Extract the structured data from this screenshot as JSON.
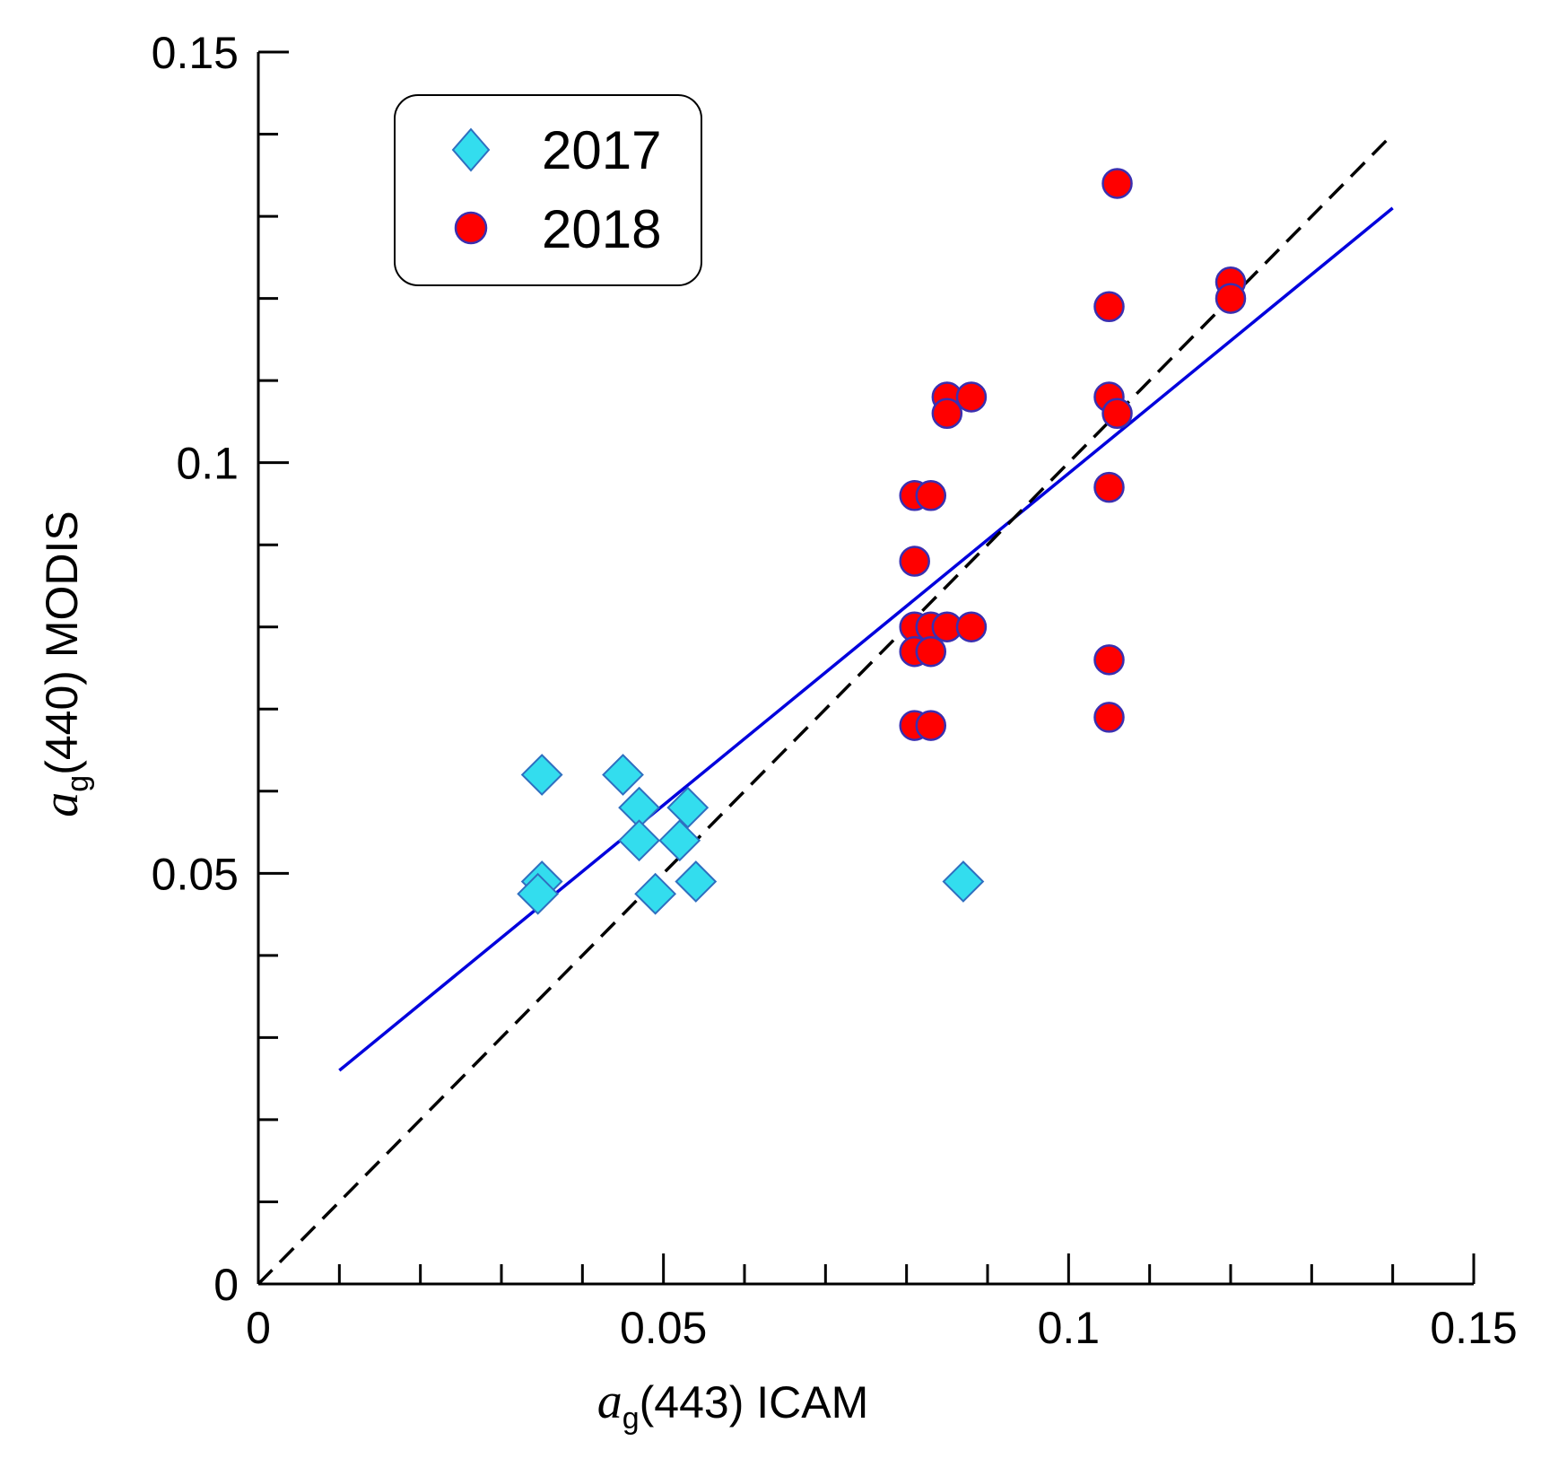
{
  "chart_data": {
    "type": "scatter",
    "title": "",
    "xlabel": {
      "symbol": "a",
      "subscript": "g",
      "rest": "(443) ICAM"
    },
    "ylabel": {
      "symbol": "a",
      "subscript": "g",
      "rest": "(440) MODIS"
    },
    "xlim": [
      0,
      0.15
    ],
    "ylim": [
      0,
      0.15
    ],
    "x_ticks": [
      {
        "value": 0,
        "label": "0"
      },
      {
        "value": 0.05,
        "label": "0.05"
      },
      {
        "value": 0.1,
        "label": "0.1"
      },
      {
        "value": 0.15,
        "label": "0.15"
      }
    ],
    "y_ticks": [
      {
        "value": 0,
        "label": "0"
      },
      {
        "value": 0.05,
        "label": "0.05"
      },
      {
        "value": 0.1,
        "label": "0.1"
      },
      {
        "value": 0.15,
        "label": "0.15"
      }
    ],
    "minor_step": 0.01,
    "legend_position": "top-left",
    "series": [
      {
        "name": "2017",
        "marker": "diamond",
        "color": "#33DDEE",
        "edge": "#2F6FC0",
        "points": [
          [
            0.035,
            0.062
          ],
          [
            0.045,
            0.062
          ],
          [
            0.047,
            0.058
          ],
          [
            0.053,
            0.058
          ],
          [
            0.047,
            0.054
          ],
          [
            0.052,
            0.054
          ],
          [
            0.035,
            0.049
          ],
          [
            0.0345,
            0.0475
          ],
          [
            0.049,
            0.0475
          ],
          [
            0.054,
            0.049
          ],
          [
            0.087,
            0.049
          ]
        ]
      },
      {
        "name": "2018",
        "marker": "circle",
        "color": "#FF0000",
        "edge": "#3A2FB0",
        "points": [
          [
            0.106,
            0.134
          ],
          [
            0.12,
            0.122
          ],
          [
            0.12,
            0.12
          ],
          [
            0.105,
            0.119
          ],
          [
            0.085,
            0.108
          ],
          [
            0.088,
            0.108
          ],
          [
            0.105,
            0.108
          ],
          [
            0.085,
            0.106
          ],
          [
            0.106,
            0.106
          ],
          [
            0.081,
            0.096
          ],
          [
            0.083,
            0.096
          ],
          [
            0.105,
            0.097
          ],
          [
            0.081,
            0.088
          ],
          [
            0.081,
            0.08
          ],
          [
            0.083,
            0.08
          ],
          [
            0.085,
            0.08
          ],
          [
            0.088,
            0.08
          ],
          [
            0.081,
            0.077
          ],
          [
            0.083,
            0.077
          ],
          [
            0.105,
            0.076
          ],
          [
            0.081,
            0.068
          ],
          [
            0.083,
            0.068
          ],
          [
            0.105,
            0.069
          ]
        ]
      }
    ],
    "lines": [
      {
        "name": "fit",
        "style": "solid",
        "color": "#0000DD",
        "points": [
          [
            0.01,
            0.026
          ],
          [
            0.14,
            0.131
          ]
        ]
      },
      {
        "name": "1:1",
        "style": "dashed",
        "color": "#000000",
        "points": [
          [
            0,
            0
          ],
          [
            0.14,
            0.14
          ]
        ]
      }
    ]
  }
}
